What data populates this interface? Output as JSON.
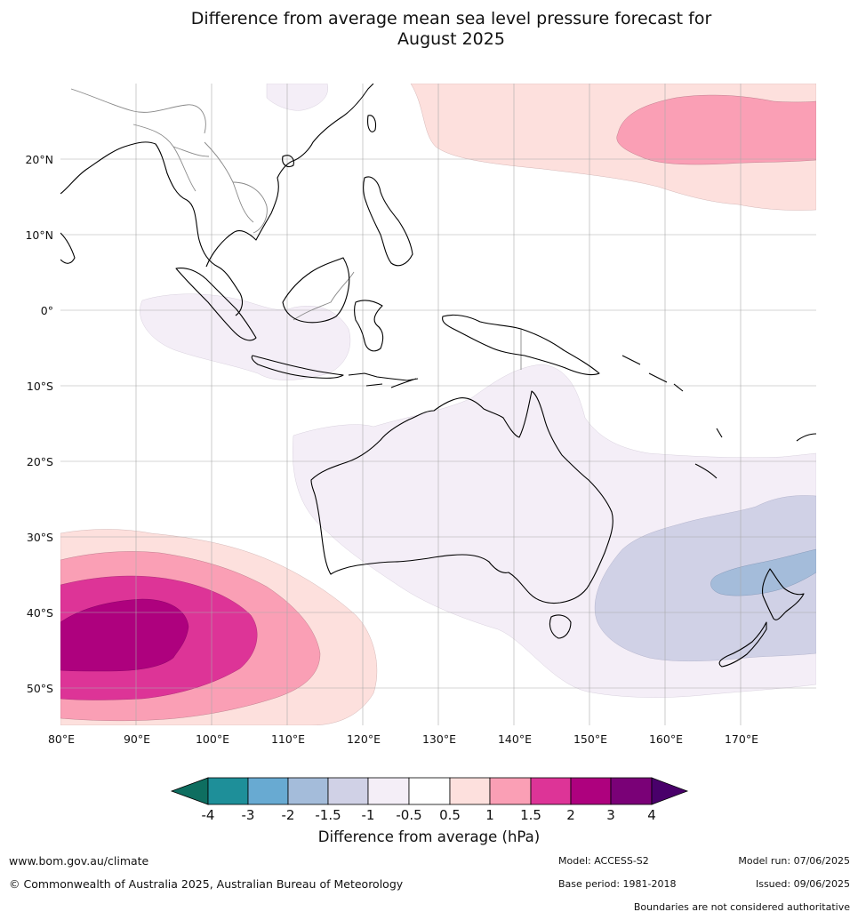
{
  "title_line1": "Difference from average mean sea level pressure forecast for",
  "title_line2": "August 2025",
  "lat_labels": [
    "20°N",
    "10°N",
    "0°",
    "10°S",
    "20°S",
    "30°S",
    "40°S",
    "50°S"
  ],
  "lon_labels": [
    "80°E",
    "90°E",
    "100°E",
    "110°E",
    "120°E",
    "130°E",
    "140°E",
    "150°E",
    "160°E",
    "170°E"
  ],
  "colorbar": {
    "title": "Difference from average (hPa)",
    "tick_labels": [
      "-4",
      "-3",
      "-2",
      "-1.5",
      "-1",
      "-0.5",
      "0.5",
      "1",
      "1.5",
      "2",
      "3",
      "4"
    ],
    "colors": [
      "#0e6e60",
      "#1e8f99",
      "#68aad2",
      "#a4bcda",
      "#d0d1e6",
      "#f4eef7",
      "#ffffff",
      "#fde0dd",
      "#fa9fb5",
      "#dd3497",
      "#ae017e",
      "#7a0177",
      "#49006a"
    ]
  },
  "footer": {
    "site": "www.bom.gov.au/climate",
    "copyright": "© Commonwealth of Australia 2025, Australian Bureau of Meteorology",
    "model": "Model: ACCESS-S2",
    "base_period": "Base period: 1981-2018",
    "model_run": "Model run: 07/06/2025",
    "issued": "Issued: 09/06/2025",
    "disclaimer": "Boundaries are not considered authoritative"
  }
}
